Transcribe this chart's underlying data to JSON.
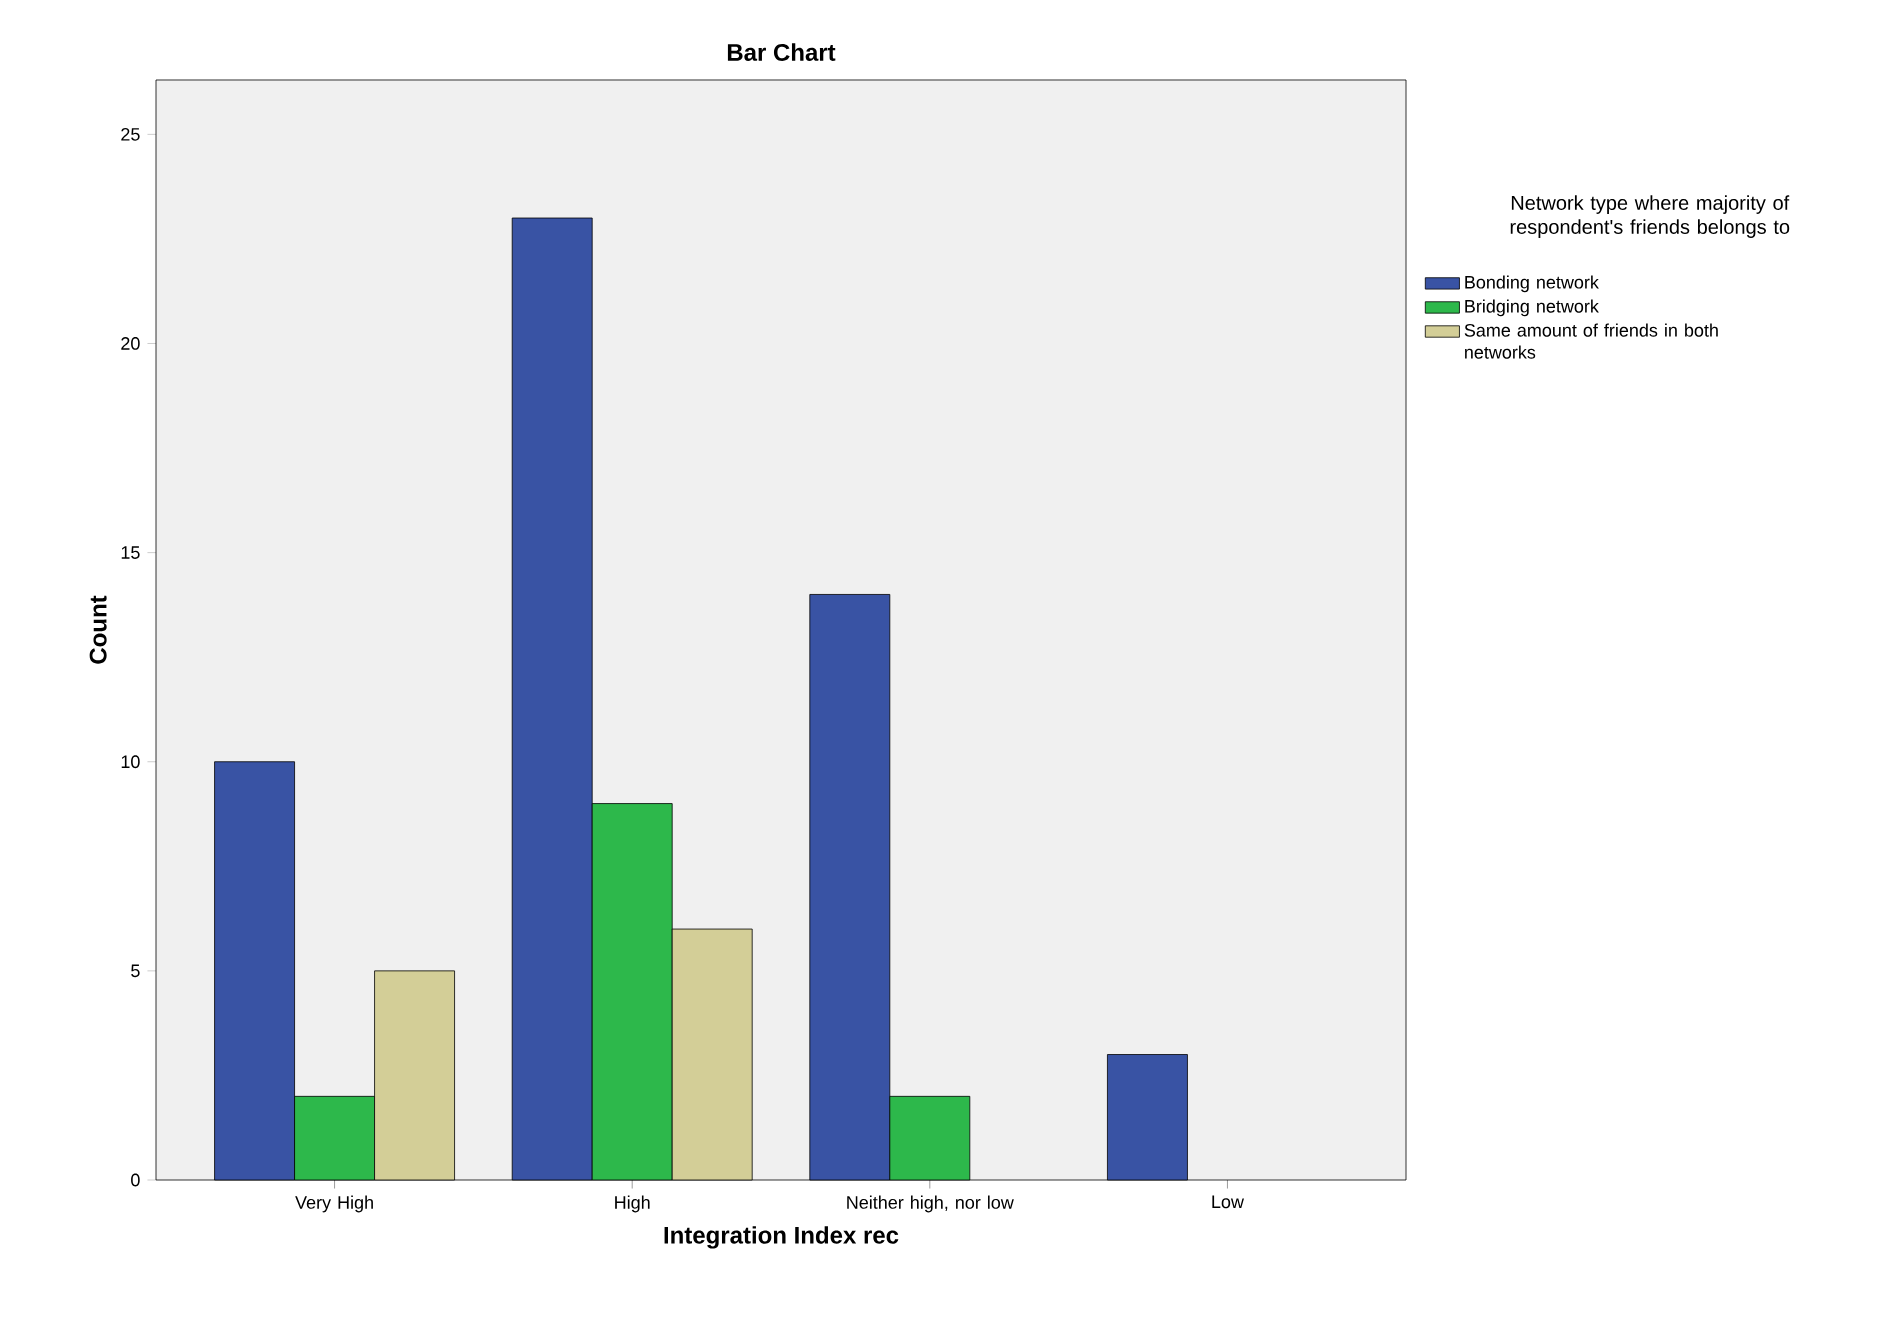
{
  "chart_data": {
    "type": "bar",
    "title": "Bar Chart",
    "xlabel": "Integration Index rec",
    "ylabel": "Count",
    "legend_title": "Network type where majority of respondent's friends belongs to",
    "categories": [
      "Very High",
      "High",
      "Neither high, nor low",
      "Low"
    ],
    "series": [
      {
        "name": "Bonding network",
        "color": "#3953a4",
        "values": [
          10,
          23,
          14,
          3
        ]
      },
      {
        "name": "Bridging network",
        "color": "#2db84b",
        "values": [
          2,
          9,
          2,
          null
        ]
      },
      {
        "name": "Same amount of friends in both networks",
        "color": "#d3ce97",
        "values": [
          5,
          6,
          null,
          null
        ]
      }
    ],
    "ylim": [
      0,
      26.3
    ],
    "yticks": [
      0,
      5,
      10,
      15,
      20,
      25
    ],
    "legend": "right",
    "grid": false
  }
}
